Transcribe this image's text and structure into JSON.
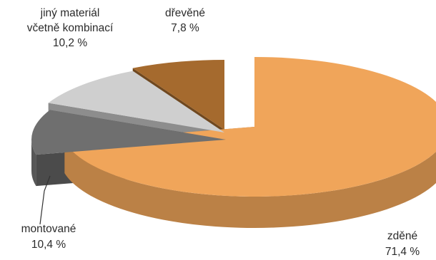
{
  "chart_data": {
    "type": "pie",
    "title": "",
    "slices": [
      {
        "key": "zdene",
        "label": "zděné",
        "value": 71.4,
        "value_text": "71,4 %",
        "color": "#f0a55a"
      },
      {
        "key": "montovane",
        "label": "montované",
        "value": 10.4,
        "value_text": "10,4 %",
        "color": "#6f6f6f"
      },
      {
        "key": "jiny",
        "label_lines": [
          "jiný materiál",
          "včetně kombinací"
        ],
        "value": 10.2,
        "value_text": "10,2 %",
        "color": "#cfcfcf"
      },
      {
        "key": "drevene",
        "label": "dřevěné",
        "value": 7.8,
        "value_text": "7,8 %",
        "color": "#a56a2e"
      }
    ],
    "labels": {
      "zdene": {
        "line1": "zděné",
        "line2": "71,4 %"
      },
      "montovane": {
        "line1": "montované",
        "line2": "10,4 %"
      },
      "jiny": {
        "line1": "jiný materiál",
        "line2": "včetně kombinací",
        "line3": "10,2 %"
      },
      "drevene": {
        "line1": "dřevěné",
        "line2": "7,8 %"
      }
    },
    "style": "3d-exploded",
    "legend": "none"
  }
}
